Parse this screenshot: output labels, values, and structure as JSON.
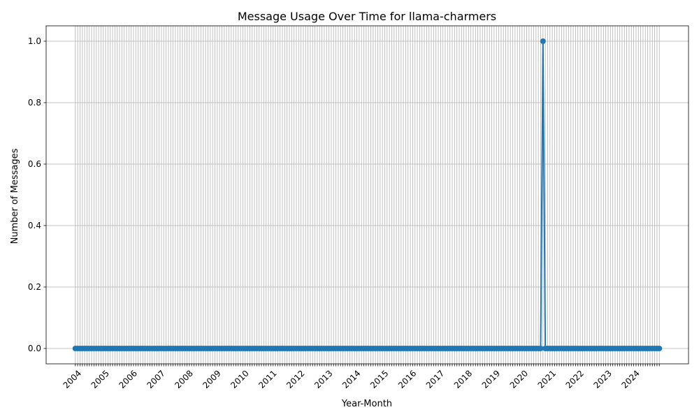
{
  "chart_data": {
    "type": "line",
    "title": "Message Usage Over Time for llama-charmers",
    "xlabel": "Year-Month",
    "ylabel": "Number of Messages",
    "x_start": "2004-01",
    "x_end": "2024-12",
    "tick_labels": [
      "2004",
      "2005",
      "2006",
      "2007",
      "2008",
      "2009",
      "2010",
      "2011",
      "2012",
      "2013",
      "2014",
      "2015",
      "2016",
      "2017",
      "2018",
      "2019",
      "2020",
      "2021",
      "2022",
      "2023",
      "2024"
    ],
    "y_ticks": [
      "0.0",
      "0.2",
      "0.4",
      "0.6",
      "0.8",
      "1.0"
    ],
    "ylim": [
      -0.05,
      1.05
    ],
    "grid": true,
    "series": [
      {
        "color": "#1f77b4",
        "default_value": 0,
        "points": [
          {
            "x": "2020-10",
            "y": 1
          }
        ]
      }
    ]
  }
}
